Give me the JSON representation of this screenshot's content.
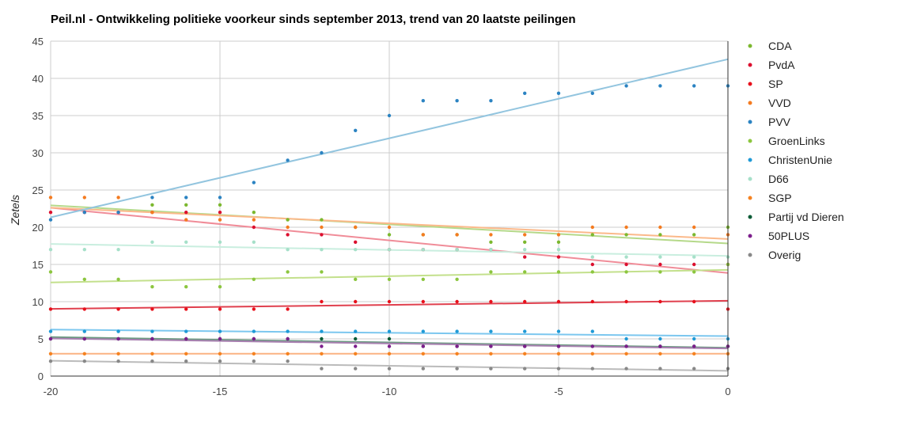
{
  "chart_data": {
    "type": "scatter",
    "title": "Peil.nl - Ontwikkeling politieke voorkeur sinds september 2013, trend van 20 laatste peilingen",
    "xlabel": "",
    "ylabel": "Zetels",
    "xlim": [
      -20,
      0
    ],
    "ylim": [
      0,
      45
    ],
    "x_ticks": [
      -20,
      -15,
      -10,
      -5,
      0
    ],
    "x_tick_labels": [
      "-20",
      "-15",
      "-10",
      "-5",
      "0"
    ],
    "y_ticks": [
      0,
      5,
      10,
      15,
      20,
      25,
      30,
      35,
      40,
      45
    ],
    "grid": true,
    "legend_position": "right",
    "trendlines": "linear",
    "x": [
      -20,
      -19,
      -18,
      -17,
      -16,
      -15,
      -14,
      -13,
      -12,
      -11,
      -10,
      -9,
      -8,
      -7,
      -6,
      -5,
      -4,
      -3,
      -2,
      -1,
      0
    ],
    "series": [
      {
        "name": "CDA",
        "color": "#7cb82f",
        "trend_color": "#b5d98a",
        "values": [
          null,
          null,
          null,
          23,
          23,
          23,
          22,
          21,
          21,
          20,
          19,
          19,
          19,
          18,
          18,
          18,
          19,
          19,
          19,
          19,
          20
        ]
      },
      {
        "name": "PvdA",
        "color": "#dc0f2e",
        "trend_color": "#f08c98",
        "values": [
          22,
          22,
          22,
          22,
          22,
          22,
          20,
          19,
          19,
          18,
          17,
          17,
          17,
          17,
          16,
          16,
          15,
          15,
          15,
          15,
          15
        ]
      },
      {
        "name": "SP",
        "color": "#e8101b",
        "trend_color": "#e0404e",
        "values": [
          9,
          9,
          9,
          9,
          9,
          9,
          9,
          9,
          10,
          10,
          10,
          10,
          10,
          10,
          10,
          10,
          10,
          10,
          10,
          10,
          9
        ]
      },
      {
        "name": "VVD",
        "color": "#f47b20",
        "trend_color": "#fbb98a",
        "values": [
          24,
          24,
          24,
          22,
          21,
          21,
          21,
          20,
          20,
          20,
          20,
          19,
          19,
          19,
          19,
          19,
          20,
          20,
          20,
          20,
          19
        ]
      },
      {
        "name": "PVV",
        "color": "#2b83c2",
        "trend_color": "#93c5df",
        "values": [
          21,
          22,
          22,
          24,
          24,
          24,
          26,
          29,
          30,
          33,
          35,
          37,
          37,
          37,
          38,
          38,
          38,
          39,
          39,
          39,
          39
        ]
      },
      {
        "name": "GroenLinks",
        "color": "#8cc63f",
        "trend_color": "#c3e08c",
        "values": [
          14,
          13,
          13,
          12,
          12,
          12,
          13,
          14,
          14,
          13,
          13,
          13,
          13,
          14,
          14,
          14,
          14,
          14,
          14,
          14,
          15
        ]
      },
      {
        "name": "ChristenUnie",
        "color": "#1f9ad6",
        "trend_color": "#7cc7ef",
        "values": [
          6,
          6,
          6,
          6,
          6,
          6,
          6,
          6,
          6,
          6,
          6,
          6,
          6,
          6,
          6,
          6,
          6,
          5,
          5,
          5,
          5
        ]
      },
      {
        "name": "D66",
        "color": "#a6e0c9",
        "trend_color": "#c9eedf",
        "values": [
          17,
          17,
          17,
          18,
          18,
          18,
          18,
          17,
          17,
          17,
          17,
          17,
          17,
          17,
          17,
          17,
          16,
          16,
          16,
          16,
          16
        ]
      },
      {
        "name": "SGP",
        "color": "#f58220",
        "trend_color": "#fbb383",
        "values": [
          3,
          3,
          3,
          3,
          3,
          3,
          3,
          3,
          3,
          3,
          3,
          3,
          3,
          3,
          3,
          3,
          3,
          3,
          3,
          3,
          3
        ]
      },
      {
        "name": "Partij vd Dieren",
        "color": "#0a5c36",
        "trend_color": "#6a9a80",
        "values": [
          5,
          5,
          5,
          5,
          5,
          5,
          5,
          5,
          5,
          5,
          5,
          4,
          4,
          4,
          4,
          4,
          4,
          4,
          4,
          4,
          4
        ]
      },
      {
        "name": "50PLUS",
        "color": "#7d1e8c",
        "trend_color": "#a880b0",
        "values": [
          5,
          5,
          5,
          5,
          5,
          5,
          5,
          5,
          4,
          4,
          4,
          4,
          4,
          4,
          4,
          4,
          4,
          4,
          4,
          4,
          4
        ]
      },
      {
        "name": "Overig",
        "color": "#888888",
        "trend_color": "#bbbbbb",
        "values": [
          2,
          2,
          2,
          2,
          2,
          2,
          2,
          2,
          1,
          1,
          1,
          1,
          1,
          1,
          1,
          1,
          1,
          1,
          1,
          1,
          1
        ]
      }
    ]
  }
}
